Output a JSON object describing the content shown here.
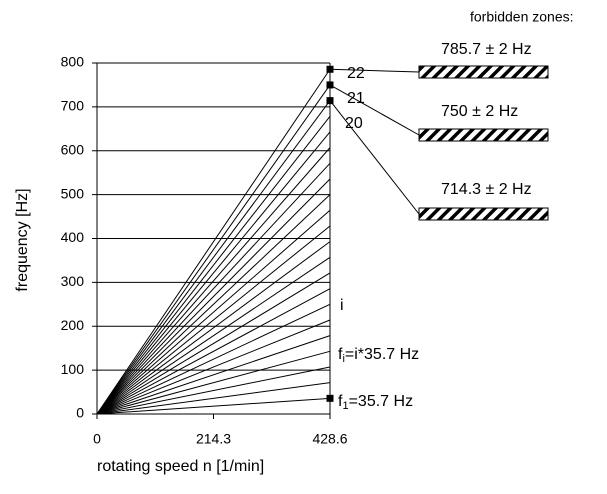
{
  "chart_data": {
    "type": "line",
    "x": [
      0,
      428.6
    ],
    "xlabel": "rotating speed n [1/min]",
    "ylabel": "frequency [Hz]",
    "xlim": [
      0,
      428.6
    ],
    "xticks": [
      0,
      214.3,
      428.6
    ],
    "ylim": [
      0,
      800
    ],
    "yticks": [
      0,
      100,
      200,
      300,
      400,
      500,
      600,
      700,
      800
    ],
    "grid": true,
    "color": "#000000",
    "series": [
      {
        "values": [
          0,
          35.7
        ],
        "marker": "square"
      },
      {
        "values": [
          0,
          71.4
        ]
      },
      {
        "values": [
          0,
          107.1
        ]
      },
      {
        "values": [
          0,
          142.9
        ]
      },
      {
        "values": [
          0,
          178.6
        ]
      },
      {
        "values": [
          0,
          214.3
        ]
      },
      {
        "values": [
          0,
          250
        ]
      },
      {
        "values": [
          0,
          285.7
        ]
      },
      {
        "values": [
          0,
          321.4
        ]
      },
      {
        "values": [
          0,
          357.1
        ]
      },
      {
        "values": [
          0,
          392.9
        ]
      },
      {
        "values": [
          0,
          428.6
        ]
      },
      {
        "values": [
          0,
          464.3
        ]
      },
      {
        "values": [
          0,
          500
        ]
      },
      {
        "values": [
          0,
          535.7
        ]
      },
      {
        "values": [
          0,
          571.4
        ]
      },
      {
        "values": [
          0,
          607.1
        ]
      },
      {
        "values": [
          0,
          642.9
        ]
      },
      {
        "values": [
          0,
          678.6
        ]
      },
      {
        "values": [
          0,
          714.3
        ],
        "marker": "square"
      },
      {
        "values": [
          0,
          750
        ],
        "marker": "square"
      },
      {
        "values": [
          0,
          785.7
        ],
        "marker": "square"
      }
    ],
    "annotations": {
      "n22": "22",
      "n21": "21",
      "n20": "20",
      "i": "i",
      "fi": {
        "f": "f",
        "sub": "i",
        "rest": "=i*35.7 Hz"
      },
      "f1": {
        "f": "f",
        "sub": "1",
        "rest": "=35.7 Hz"
      }
    },
    "zones_title": "forbidden zones:",
    "zones": [
      {
        "label": "785.7 ± 2 Hz"
      },
      {
        "label": "750 ± 2 Hz"
      },
      {
        "label": "714.3 ± 2 Hz"
      }
    ]
  }
}
